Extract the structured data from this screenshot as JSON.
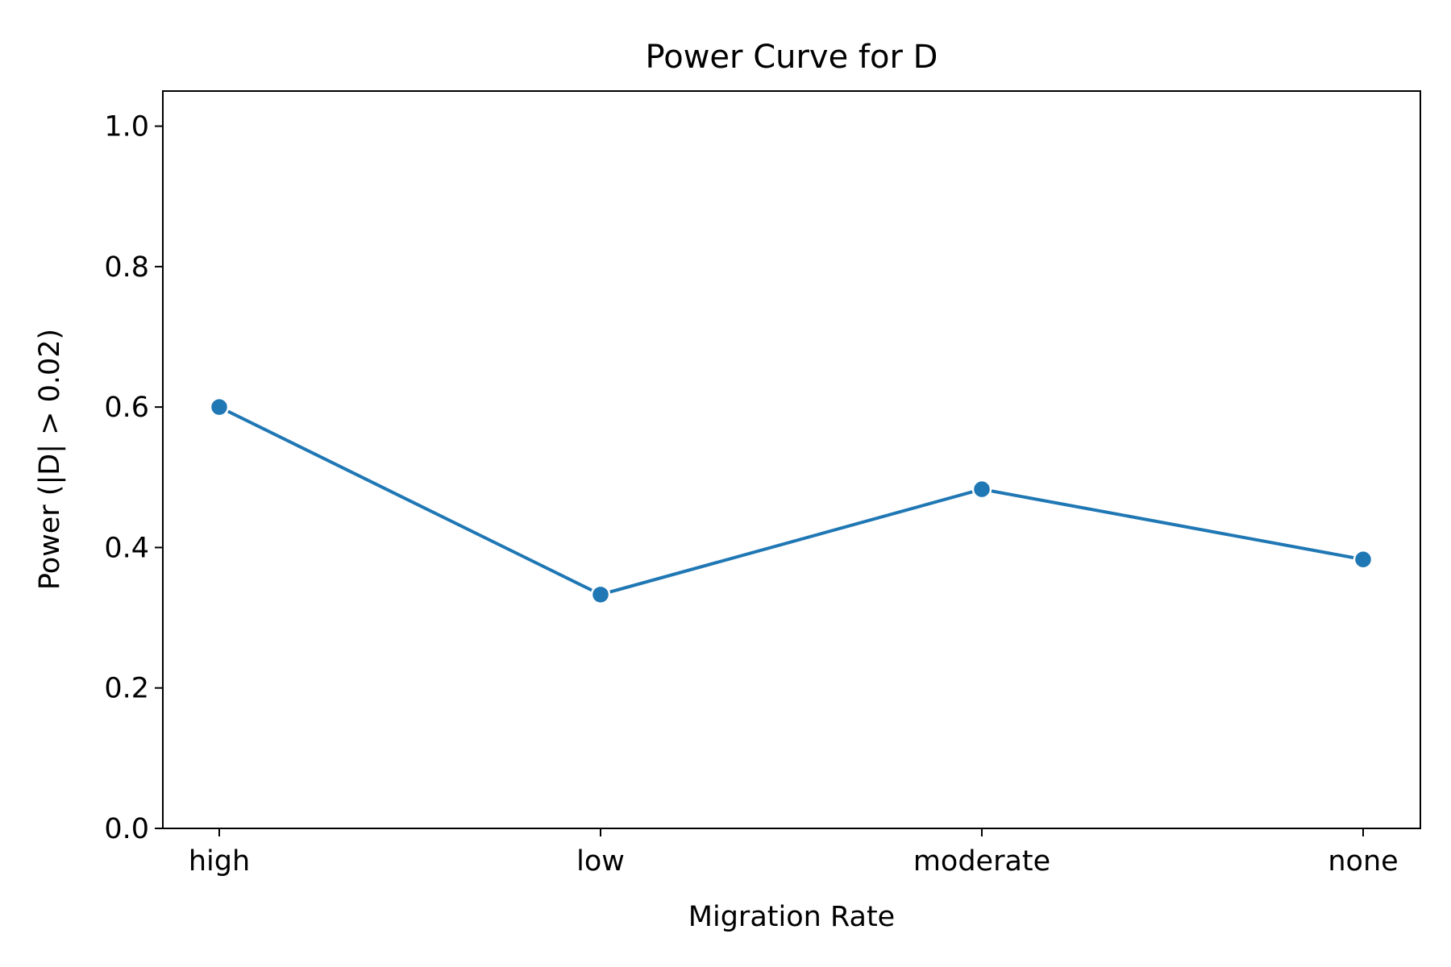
{
  "chart_data": {
    "type": "line",
    "title": "Power Curve for D",
    "xlabel": "Migration Rate",
    "ylabel": "Power (|D| > 0.02)",
    "categories": [
      "high",
      "low",
      "moderate",
      "none"
    ],
    "series": [
      {
        "values": [
          0.6,
          0.333,
          0.483,
          0.383
        ]
      }
    ],
    "ylim": [
      0.0,
      1.05
    ],
    "yticks": [
      0.0,
      0.2,
      0.4,
      0.6,
      0.8,
      1.0
    ],
    "ytick_labels": [
      "0.0",
      "0.2",
      "0.4",
      "0.6",
      "0.8",
      "1.0"
    ],
    "grid": false,
    "markers": true,
    "line_color": "#1f77b4"
  }
}
